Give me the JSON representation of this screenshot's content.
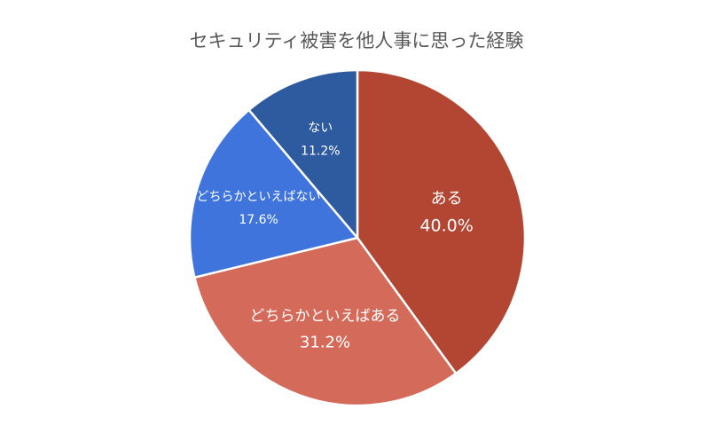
{
  "chart_data": {
    "type": "pie",
    "title": "セキュリティ被害を他人事に思った経験",
    "slices": [
      {
        "label": "ある",
        "value": 40.0,
        "value_text": "40.0%",
        "color": "#B24632"
      },
      {
        "label": "どちらかといえばある",
        "value": 31.2,
        "value_text": "31.2%",
        "color": "#D46B5A"
      },
      {
        "label": "どちらかといえばない",
        "value": 17.6,
        "value_text": "17.6%",
        "color": "#3F74DC"
      },
      {
        "label": "ない",
        "value": 11.2,
        "value_text": "11.2%",
        "color": "#2E5BA0"
      }
    ],
    "start_angle_deg": 0,
    "direction": "clockwise",
    "data_labels": "inside"
  }
}
